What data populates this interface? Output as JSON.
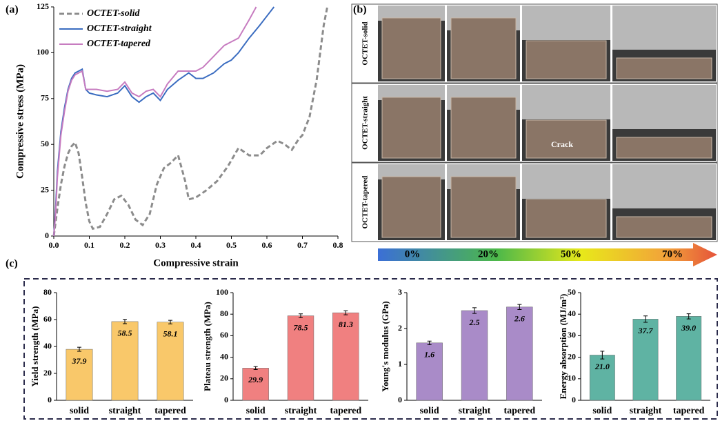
{
  "panel_labels": [
    "(a)",
    "(b)",
    "(c)"
  ],
  "photos": {
    "rows": [
      "OCTET-solid",
      "OCTET-straight",
      "OCTET-tapered"
    ],
    "annotation": "Crack",
    "strain_scale": [
      "0%",
      "20%",
      "50%",
      "70%"
    ]
  },
  "chart_data": [
    {
      "type": "line",
      "xlabel": "Compressive strain",
      "ylabel": "Compressive stress (MPa)",
      "xlim": [
        0,
        0.8
      ],
      "ylim": [
        0,
        125
      ],
      "xticks": [
        {
          "value": 0,
          "label": "0.0"
        },
        0.1,
        0.2,
        0.3,
        0.4,
        0.5,
        0.6,
        0.7,
        0.8
      ],
      "yticks": [
        0,
        25,
        50,
        75,
        100,
        125
      ],
      "legend": "upper left",
      "series": [
        {
          "name": "OCTET-solid",
          "color": "#8c8c8c",
          "line_style": "dashed",
          "x": [
            0,
            0.01,
            0.02,
            0.03,
            0.04,
            0.05,
            0.06,
            0.07,
            0.08,
            0.09,
            0.1,
            0.11,
            0.13,
            0.15,
            0.17,
            0.19,
            0.21,
            0.23,
            0.25,
            0.27,
            0.29,
            0.31,
            0.33,
            0.35,
            0.37,
            0.38,
            0.4,
            0.43,
            0.46,
            0.49,
            0.52,
            0.55,
            0.58,
            0.6,
            0.63,
            0.65,
            0.67,
            0.69,
            0.7,
            0.72,
            0.74,
            0.76,
            0.77
          ],
          "values": [
            0,
            15,
            28,
            38,
            45,
            49,
            51,
            45,
            32,
            18,
            8,
            4,
            5,
            12,
            20,
            22,
            17,
            9,
            6,
            12,
            28,
            37,
            40,
            44,
            30,
            20,
            21,
            25,
            30,
            38,
            48,
            44,
            44,
            48,
            52,
            50,
            47,
            53,
            55,
            65,
            85,
            115,
            125
          ]
        },
        {
          "name": "OCTET-straight",
          "color": "#3a6cc0",
          "line_style": "solid",
          "x": [
            0,
            0.005,
            0.01,
            0.02,
            0.03,
            0.04,
            0.05,
            0.06,
            0.07,
            0.08,
            0.09,
            0.1,
            0.12,
            0.15,
            0.18,
            0.2,
            0.22,
            0.24,
            0.26,
            0.28,
            0.3,
            0.32,
            0.35,
            0.38,
            0.4,
            0.42,
            0.45,
            0.48,
            0.5,
            0.52,
            0.55,
            0.58,
            0.6,
            0.62
          ],
          "values": [
            0,
            15,
            35,
            57,
            70,
            80,
            86,
            89,
            90,
            91,
            80,
            78,
            77,
            76,
            78,
            82,
            76,
            73,
            76,
            78,
            74,
            80,
            85,
            89,
            86,
            86,
            89,
            94,
            96,
            100,
            108,
            115,
            120,
            125
          ]
        },
        {
          "name": "OCTET-tapered",
          "color": "#c77cc0",
          "line_style": "solid",
          "x": [
            0,
            0.005,
            0.01,
            0.02,
            0.03,
            0.04,
            0.05,
            0.06,
            0.07,
            0.08,
            0.09,
            0.1,
            0.12,
            0.15,
            0.18,
            0.2,
            0.22,
            0.24,
            0.26,
            0.28,
            0.3,
            0.32,
            0.35,
            0.38,
            0.4,
            0.42,
            0.45,
            0.48,
            0.5,
            0.52,
            0.55,
            0.57
          ],
          "values": [
            0,
            12,
            32,
            55,
            68,
            79,
            85,
            88,
            89,
            90,
            80,
            80,
            80,
            79,
            80,
            84,
            78,
            76,
            79,
            80,
            76,
            83,
            90,
            90,
            90,
            92,
            98,
            104,
            106,
            108,
            118,
            125
          ]
        }
      ]
    },
    {
      "type": "bar",
      "ylabel": "Yield strength (MPa)",
      "categories": [
        "solid",
        "straight",
        "tapered"
      ],
      "values": [
        37.9,
        58.5,
        58.1
      ],
      "errors": [
        1.5,
        1.6,
        1.3
      ],
      "color": "#f9c86a",
      "ylim": [
        0,
        80
      ],
      "yticks": [
        0,
        20,
        40,
        60,
        80
      ]
    },
    {
      "type": "bar",
      "ylabel": "Plateau strength (MPa)",
      "categories": [
        "solid",
        "straight",
        "tapered"
      ],
      "values": [
        29.9,
        78.5,
        81.3
      ],
      "errors": [
        1.4,
        1.8,
        1.9
      ],
      "color": "#f08080",
      "ylim": [
        0,
        100
      ],
      "yticks": [
        0,
        20,
        40,
        60,
        80,
        100
      ]
    },
    {
      "type": "bar",
      "ylabel": "Young's modulus (GPa)",
      "categories": [
        "solid",
        "straight",
        "tapered"
      ],
      "values": [
        1.6,
        2.5,
        2.6
      ],
      "errors": [
        0.05,
        0.08,
        0.07
      ],
      "color": "#a98bc8",
      "ylim": [
        0,
        3
      ],
      "yticks": [
        0,
        1,
        2,
        3
      ]
    },
    {
      "type": "bar",
      "ylabel": "Energy absorption (MJ/m³)",
      "categories": [
        "solid",
        "straight",
        "tapered"
      ],
      "values": [
        21.0,
        37.7,
        39.0
      ],
      "value_labels": [
        "21.0",
        "37.7",
        "39.0"
      ],
      "errors": [
        1.8,
        1.5,
        1.2
      ],
      "color": "#5fb3a3",
      "ylim": [
        0,
        50
      ],
      "yticks": [
        0,
        10,
        20,
        30,
        40,
        50
      ]
    }
  ]
}
